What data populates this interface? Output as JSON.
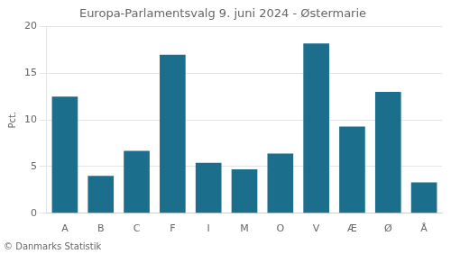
{
  "chart_data": {
    "type": "bar",
    "title": "Europa-Parlamentsvalg 9. juni 2024 - Østermarie",
    "ylabel": "Pct.",
    "annotations": [
      "© Danmarks Statistik"
    ],
    "categories": [
      "A",
      "B",
      "C",
      "F",
      "I",
      "M",
      "O",
      "V",
      "Æ",
      "Ø",
      "Å"
    ],
    "values": [
      12.5,
      4.0,
      6.7,
      17.0,
      5.4,
      4.7,
      6.4,
      18.2,
      9.3,
      13.0,
      3.3
    ],
    "color": "#1c6f8c",
    "ylim": [
      0,
      20
    ],
    "yticks": [
      0,
      5,
      10,
      15,
      20
    ],
    "grid": true
  }
}
